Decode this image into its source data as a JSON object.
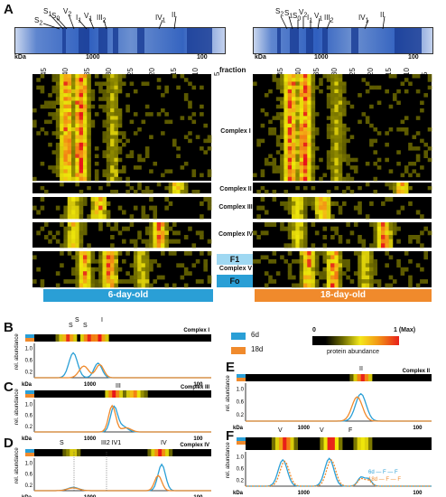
{
  "panels": {
    "A": "A",
    "B": "B",
    "C": "C",
    "D": "D",
    "E": "E",
    "F": "F"
  },
  "gel_labels": {
    "left": [
      "S",
      "S",
      "S",
      "V",
      "I",
      "V",
      "III",
      "IV",
      "II"
    ],
    "right": [
      "S",
      "S",
      "S",
      "V",
      "I",
      "V",
      "III",
      "IV",
      "II"
    ],
    "subs": [
      "2",
      "1",
      "0",
      "2",
      "1",
      "1",
      "2",
      "1",
      ""
    ]
  },
  "mw_axis": {
    "kda": "kDa",
    "ticks": [
      "1000",
      "100"
    ]
  },
  "fractions": {
    "label": "fraction",
    "ticks": [
      "45",
      "40",
      "35",
      "30",
      "25",
      "20",
      "15",
      "10",
      "5"
    ]
  },
  "complexes": [
    "Complex I",
    "Complex II",
    "Complex III",
    "Complex IV",
    "Complex V"
  ],
  "cv_parts": {
    "f1": "F1",
    "fo": "Fo"
  },
  "conditions": {
    "left": "6-day-old",
    "right": "18-day-old"
  },
  "colors": {
    "blue": "#2a9fd6",
    "orange": "#f08a2c",
    "red": "#e8201a",
    "yellow": "#f4e81a"
  },
  "legend": {
    "d6": "6d",
    "d18": "18d",
    "scale_min": "0",
    "scale_max": "1 (Max)",
    "scale_label": "protein abundance"
  },
  "plots": {
    "B": {
      "title": "Complex I",
      "labels": [
        "S",
        "S",
        "S",
        "I"
      ],
      "subs": [
        "2",
        "1",
        "0",
        "1"
      ]
    },
    "C": {
      "title": "Complex III",
      "labels": [
        "III"
      ],
      "subs": [
        "2"
      ]
    },
    "D": {
      "title": "Complex IV",
      "labels": [
        "S",
        "III",
        "IV",
        "IV"
      ],
      "subs": [
        "1",
        "2",
        "1",
        "1"
      ]
    },
    "E": {
      "title": "Complex II",
      "labels": [
        "II"
      ],
      "subs": [
        ""
      ]
    },
    "F": {
      "title": "Complex V",
      "labels": [
        "V",
        "V",
        "F"
      ],
      "subs": [
        "2",
        "1",
        "1"
      ],
      "legend": [
        "6d",
        "F",
        "F",
        "18d",
        "F",
        "F"
      ],
      "legend_subs": [
        "",
        "o",
        "1",
        "",
        "o",
        "1"
      ]
    }
  },
  "axis_text": {
    "ylabel": "rel. abundance",
    "yticks": [
      "0.2",
      "0.6",
      "1.0"
    ],
    "kda": "kDa",
    "t1000": "1000",
    "t100": "100"
  }
}
